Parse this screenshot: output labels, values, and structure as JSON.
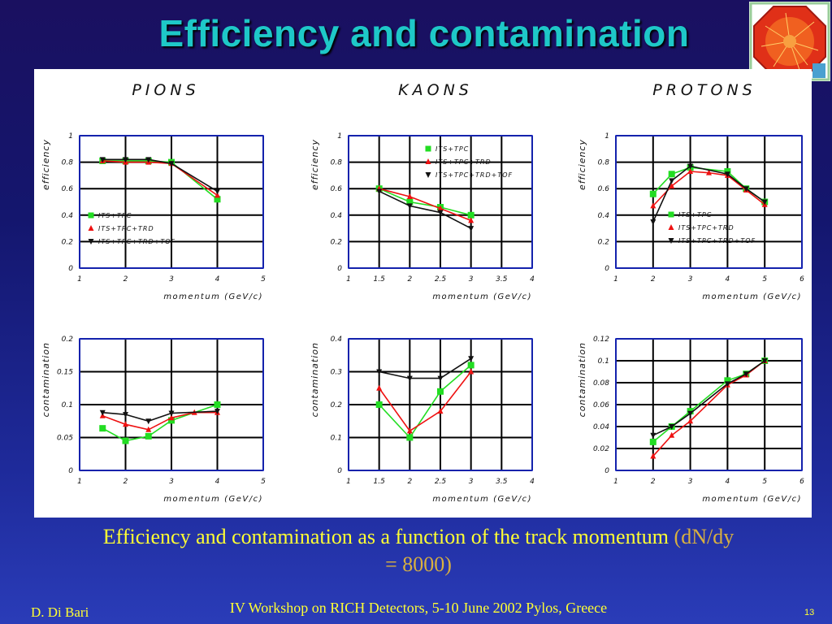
{
  "slide": {
    "title": "Efficiency and contamination",
    "caption_main": "Efficiency and contamination as a function of the track momentum",
    "caption_accent": "(dN/dy = 8000)",
    "footer_author": "D. Di Bari",
    "footer_event": "IV Workshop on RICH Detectors, 5-10 June 2002 Pylos, Greece",
    "page_number": "13"
  },
  "colors": {
    "background": "#1a1060",
    "title": "#1ec8c8",
    "caption": "#ffff33",
    "series_green": "#22dd22",
    "series_red": "#ee1111",
    "series_black": "#111111",
    "axis_blue": "#1a2ad8"
  },
  "icons": {
    "logo": "alice-detector-logo-icon"
  },
  "chart_data": [
    {
      "type": "line",
      "column_title": "PIONS",
      "ylabel": "efficiency",
      "xlabel": "momentum (GeV/c)",
      "xlim": [
        1,
        5
      ],
      "ylim": [
        0,
        1
      ],
      "xticks": [
        "1",
        "2",
        "3",
        "4",
        "5"
      ],
      "yticks": [
        "0",
        "0.2",
        "0.4",
        "0.6",
        "0.8",
        "1"
      ],
      "legend": "left",
      "grid": true,
      "series": [
        {
          "name": "ITS+TPC",
          "marker": "square",
          "color": "green",
          "x": [
            1.5,
            2,
            2.5,
            3,
            4
          ],
          "y": [
            0.81,
            0.81,
            0.81,
            0.8,
            0.52
          ]
        },
        {
          "name": "ITS+TPC+TRD",
          "marker": "triangle-up",
          "color": "red",
          "x": [
            1.5,
            2,
            2.5,
            3,
            4
          ],
          "y": [
            0.81,
            0.8,
            0.8,
            0.79,
            0.55
          ]
        },
        {
          "name": "ITS+TPC+TRD+TOF",
          "marker": "triangle-down",
          "color": "black",
          "x": [
            1.5,
            2,
            2.5,
            3,
            4
          ],
          "y": [
            0.82,
            0.82,
            0.82,
            0.79,
            0.58
          ]
        }
      ]
    },
    {
      "type": "line",
      "column_title": "KAONS",
      "ylabel": "efficiency",
      "xlabel": "momentum (GeV/c)",
      "xlim": [
        1,
        4
      ],
      "ylim": [
        0,
        1
      ],
      "xticks": [
        "1",
        "1.5",
        "2",
        "2.5",
        "3",
        "3.5",
        "4"
      ],
      "yticks": [
        "0",
        "0.2",
        "0.4",
        "0.6",
        "0.8",
        "1"
      ],
      "legend": "top-right",
      "grid": true,
      "series": [
        {
          "name": "ITS+TPC",
          "marker": "square",
          "color": "green",
          "x": [
            1.5,
            2,
            2.5,
            3
          ],
          "y": [
            0.6,
            0.5,
            0.46,
            0.4
          ]
        },
        {
          "name": "ITS+TPC+TRD",
          "marker": "triangle-up",
          "color": "red",
          "x": [
            1.5,
            2,
            2.5,
            3
          ],
          "y": [
            0.6,
            0.54,
            0.45,
            0.36
          ]
        },
        {
          "name": "ITS+TPC+TRD+TOF",
          "marker": "triangle-down",
          "color": "black",
          "x": [
            1.5,
            2,
            2.5,
            3
          ],
          "y": [
            0.58,
            0.47,
            0.42,
            0.3
          ]
        }
      ]
    },
    {
      "type": "line",
      "column_title": "PROTONS",
      "ylabel": "efficiency",
      "xlabel": "momentum (GeV/c)",
      "xlim": [
        1,
        6
      ],
      "ylim": [
        0,
        1
      ],
      "xticks": [
        "1",
        "2",
        "3",
        "4",
        "5",
        "6"
      ],
      "yticks": [
        "0",
        "0.2",
        "0.4",
        "0.6",
        "0.8",
        "1"
      ],
      "legend": "bottom",
      "grid": true,
      "series": [
        {
          "name": "ITS+TPC",
          "marker": "square",
          "color": "green",
          "x": [
            2,
            2.5,
            3,
            4,
            4.5,
            5
          ],
          "y": [
            0.56,
            0.71,
            0.76,
            0.73,
            0.6,
            0.5
          ]
        },
        {
          "name": "ITS+TPC+TRD",
          "marker": "triangle-up",
          "color": "red",
          "x": [
            2,
            2.5,
            3,
            3.5,
            4,
            4.5,
            5
          ],
          "y": [
            0.47,
            0.62,
            0.73,
            0.72,
            0.7,
            0.59,
            0.48
          ]
        },
        {
          "name": "ITS+TPC+TRD+TOF",
          "marker": "triangle-down",
          "color": "black",
          "x": [
            2,
            2.5,
            3,
            4,
            4.5,
            5
          ],
          "y": [
            0.35,
            0.66,
            0.77,
            0.71,
            0.6,
            0.5
          ]
        }
      ]
    },
    {
      "type": "line",
      "column_title": "PIONS",
      "ylabel": "contamination",
      "xlabel": "momentum (GeV/c)",
      "xlim": [
        1,
        5
      ],
      "ylim": [
        0,
        0.2
      ],
      "xticks": [
        "1",
        "2",
        "3",
        "4",
        "5"
      ],
      "yticks": [
        "0",
        "0.05",
        "0.1",
        "0.15",
        "0.2"
      ],
      "grid": true,
      "series": [
        {
          "name": "ITS+TPC",
          "marker": "square",
          "color": "green",
          "x": [
            1.5,
            2,
            2.5,
            3,
            4
          ],
          "y": [
            0.064,
            0.045,
            0.052,
            0.076,
            0.1
          ]
        },
        {
          "name": "ITS+TPC+TRD",
          "marker": "triangle-up",
          "color": "red",
          "x": [
            1.5,
            2,
            2.5,
            3,
            3.5,
            4
          ],
          "y": [
            0.083,
            0.07,
            0.062,
            0.08,
            0.088,
            0.088
          ]
        },
        {
          "name": "ITS+TPC+TRD+TOF",
          "marker": "triangle-down",
          "color": "black",
          "x": [
            1.5,
            2,
            2.5,
            3,
            4
          ],
          "y": [
            0.088,
            0.085,
            0.075,
            0.087,
            0.09
          ]
        }
      ]
    },
    {
      "type": "line",
      "column_title": "KAONS",
      "ylabel": "contamination",
      "xlabel": "momentum (GeV/c)",
      "xlim": [
        1,
        4
      ],
      "ylim": [
        0,
        0.4
      ],
      "xticks": [
        "1",
        "1.5",
        "2",
        "2.5",
        "3",
        "3.5",
        "4"
      ],
      "yticks": [
        "0",
        "0.1",
        "0.2",
        "0.3",
        "0.4"
      ],
      "grid": true,
      "series": [
        {
          "name": "ITS+TPC",
          "marker": "square",
          "color": "green",
          "x": [
            1.5,
            2,
            2.5,
            3
          ],
          "y": [
            0.2,
            0.1,
            0.24,
            0.32
          ]
        },
        {
          "name": "ITS+TPC+TRD",
          "marker": "triangle-up",
          "color": "red",
          "x": [
            1.5,
            2,
            2.5,
            3
          ],
          "y": [
            0.25,
            0.12,
            0.18,
            0.3
          ]
        },
        {
          "name": "ITS+TPC+TRD+TOF",
          "marker": "triangle-down",
          "color": "black",
          "x": [
            1.5,
            2,
            2.5,
            3
          ],
          "y": [
            0.3,
            0.28,
            0.28,
            0.34
          ]
        }
      ]
    },
    {
      "type": "line",
      "column_title": "PROTONS",
      "ylabel": "contamination",
      "xlabel": "momentum (GeV/c)",
      "xlim": [
        1,
        6
      ],
      "ylim": [
        0,
        0.12
      ],
      "xticks": [
        "1",
        "2",
        "3",
        "4",
        "5",
        "6"
      ],
      "yticks": [
        "0",
        "0.02",
        "0.04",
        "0.06",
        "0.08",
        "0.1",
        "0.12"
      ],
      "grid": true,
      "series": [
        {
          "name": "ITS+TPC",
          "marker": "square",
          "color": "green",
          "x": [
            2,
            2.5,
            3,
            4,
            4.5,
            5
          ],
          "y": [
            0.026,
            0.04,
            0.054,
            0.082,
            0.088,
            0.1
          ]
        },
        {
          "name": "ITS+TPC+TRD",
          "marker": "triangle-up",
          "color": "red",
          "x": [
            2,
            2.5,
            3,
            4,
            4.5,
            5
          ],
          "y": [
            0.013,
            0.032,
            0.045,
            0.078,
            0.087,
            0.1
          ]
        },
        {
          "name": "ITS+TPC+TRD+TOF",
          "marker": "triangle-down",
          "color": "black",
          "x": [
            2,
            2.5,
            3,
            4,
            4.5,
            5
          ],
          "y": [
            0.032,
            0.04,
            0.052,
            0.079,
            0.088,
            0.1
          ]
        }
      ]
    }
  ]
}
